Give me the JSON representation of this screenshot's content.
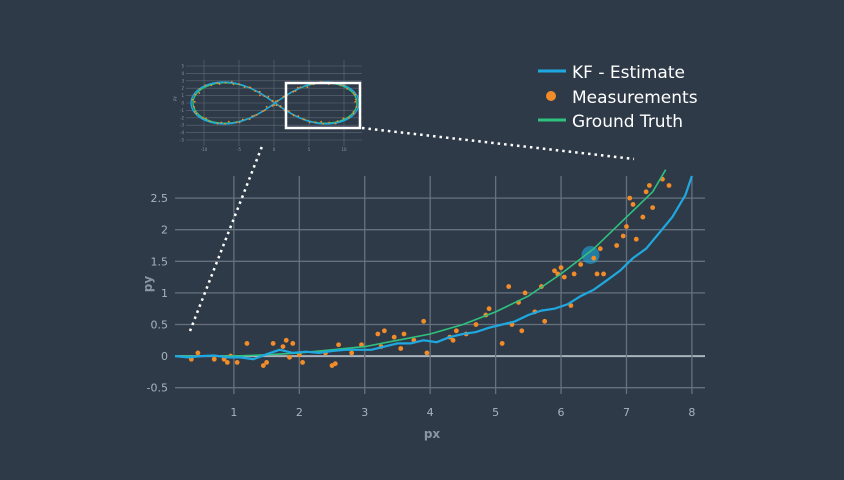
{
  "chart_data": {
    "type": "line",
    "xlabel": "px",
    "ylabel": "py",
    "xlim": [
      0.1,
      8.2
    ],
    "ylim": [
      -0.6,
      2.85
    ],
    "x_ticks": [
      1,
      2,
      3,
      4,
      5,
      6,
      7,
      8
    ],
    "y_ticks": [
      -0.5,
      0,
      0.5,
      1,
      1.5,
      2,
      2.5
    ],
    "x_tick_labels": [
      "1",
      "2",
      "3",
      "4",
      "5",
      "6",
      "7",
      "8"
    ],
    "y_tick_labels": [
      "-0.5",
      "0",
      "0.5",
      "1",
      "1.5",
      "2",
      "2.5"
    ],
    "grid": true,
    "legend_position": "top-right",
    "series": [
      {
        "name": "KF - Estimate",
        "kind": "line",
        "color": "#1fa8e0",
        "x": [
          0.1,
          0.3,
          0.5,
          0.7,
          0.9,
          1.1,
          1.3,
          1.5,
          1.7,
          1.9,
          2.1,
          2.3,
          2.5,
          2.7,
          2.9,
          3.1,
          3.3,
          3.5,
          3.7,
          3.9,
          4.1,
          4.3,
          4.5,
          4.7,
          4.9,
          5.1,
          5.3,
          5.5,
          5.7,
          5.9,
          6.1,
          6.3,
          6.5,
          6.7,
          6.9,
          7.1,
          7.3,
          7.5,
          7.7,
          7.9,
          8.0
        ],
        "y": [
          0.0,
          -0.02,
          0.0,
          0.01,
          -0.02,
          -0.02,
          -0.05,
          0.03,
          0.1,
          0.05,
          0.07,
          0.05,
          0.08,
          0.1,
          0.1,
          0.1,
          0.15,
          0.2,
          0.2,
          0.25,
          0.22,
          0.3,
          0.35,
          0.38,
          0.45,
          0.5,
          0.55,
          0.65,
          0.72,
          0.75,
          0.82,
          0.95,
          1.05,
          1.2,
          1.35,
          1.55,
          1.7,
          1.95,
          2.2,
          2.55,
          2.85
        ]
      },
      {
        "name": "Measurements",
        "kind": "scatter",
        "color": "#f28c28",
        "x": [
          0.35,
          0.45,
          0.7,
          0.85,
          0.9,
          0.95,
          1.05,
          1.2,
          1.45,
          1.5,
          1.6,
          1.75,
          1.8,
          1.85,
          1.9,
          2.0,
          2.05,
          2.4,
          2.5,
          2.55,
          2.6,
          2.8,
          2.95,
          3.2,
          3.25,
          3.3,
          3.45,
          3.55,
          3.6,
          3.75,
          3.9,
          3.95,
          4.3,
          4.35,
          4.4,
          4.55,
          4.7,
          4.85,
          4.9,
          5.1,
          5.2,
          5.25,
          5.35,
          5.4,
          5.45,
          5.6,
          5.7,
          5.75,
          5.9,
          5.95,
          6.0,
          6.05,
          6.15,
          6.2,
          6.3,
          6.5,
          6.55,
          6.6,
          6.65,
          6.85,
          6.95,
          7.0,
          7.05,
          7.1,
          7.15,
          7.25,
          7.3,
          7.35,
          7.4,
          7.55,
          7.65
        ],
        "y": [
          -0.05,
          0.05,
          -0.05,
          -0.05,
          -0.1,
          0.0,
          -0.1,
          0.2,
          -0.15,
          -0.1,
          0.2,
          0.15,
          0.25,
          -0.02,
          0.2,
          0.02,
          -0.1,
          0.05,
          -0.15,
          -0.12,
          0.18,
          0.05,
          0.18,
          0.35,
          0.15,
          0.4,
          0.3,
          0.12,
          0.35,
          0.25,
          0.55,
          0.05,
          0.3,
          0.25,
          0.4,
          0.35,
          0.5,
          0.65,
          0.75,
          0.2,
          1.1,
          0.5,
          0.85,
          0.4,
          1.0,
          0.7,
          1.1,
          0.55,
          1.35,
          1.3,
          1.4,
          1.25,
          0.8,
          1.3,
          1.45,
          1.55,
          1.3,
          1.7,
          1.3,
          1.75,
          1.9,
          2.05,
          2.5,
          2.4,
          1.85,
          2.2,
          2.6,
          2.7,
          2.35,
          2.8,
          2.7
        ]
      },
      {
        "name": "Ground Truth",
        "kind": "line",
        "color": "#2ec27e",
        "x": [
          0.1,
          0.5,
          1.0,
          1.5,
          2.0,
          2.5,
          3.0,
          3.5,
          4.0,
          4.5,
          5.0,
          5.5,
          6.0,
          6.5,
          7.0,
          7.4,
          7.6
        ],
        "y": [
          0.0,
          0.0,
          0.0,
          0.02,
          0.05,
          0.1,
          0.15,
          0.25,
          0.35,
          0.5,
          0.7,
          0.95,
          1.3,
          1.7,
          2.2,
          2.6,
          2.95
        ]
      }
    ],
    "highlight_point": {
      "x": 6.45,
      "y": 1.6
    }
  },
  "inset": {
    "y_tick_labels": [
      "5",
      "4",
      "3",
      "2",
      "1",
      "0",
      "-1",
      "-2",
      "-3",
      "-4",
      "-5"
    ],
    "x_tick_labels": [
      "-10",
      "-5",
      "0",
      "5",
      "10"
    ]
  }
}
